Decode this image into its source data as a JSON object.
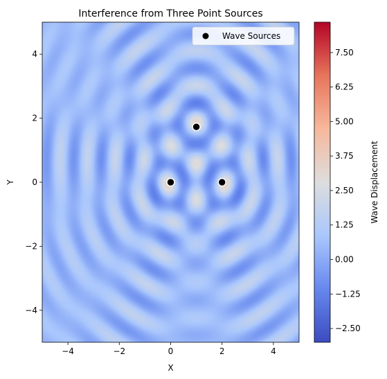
{
  "chart_data": {
    "type": "heatmap",
    "title": "Interference from Three Point Sources",
    "xlabel": "X",
    "ylabel": "Y",
    "xlim": [
      -5,
      5
    ],
    "ylim": [
      -5,
      5
    ],
    "x_ticks": [
      {
        "value": -4,
        "label": "−4"
      },
      {
        "value": -2,
        "label": "−2"
      },
      {
        "value": 0,
        "label": "0"
      },
      {
        "value": 2,
        "label": "2"
      },
      {
        "value": 4,
        "label": "4"
      }
    ],
    "y_ticks": [
      {
        "value": -4,
        "label": "−4"
      },
      {
        "value": -2,
        "label": "−2"
      },
      {
        "value": 0,
        "label": "0"
      },
      {
        "value": 2,
        "label": "2"
      },
      {
        "value": 4,
        "label": "4"
      }
    ],
    "colormap": "coolwarm",
    "colormap_stops": [
      "#3b4cc0",
      "#6688ee",
      "#aac7fd",
      "#dddddd",
      "#f7b89c",
      "#e7755b",
      "#b40426"
    ],
    "colorbar": {
      "label": "Wave Displacement",
      "range": [
        -3.0,
        8.6
      ],
      "ticks": [
        {
          "value": -2.5,
          "label": "−2.50"
        },
        {
          "value": -1.25,
          "label": "−1.25"
        },
        {
          "value": 0.0,
          "label": "0.00"
        },
        {
          "value": 1.25,
          "label": "1.25"
        },
        {
          "value": 2.5,
          "label": "2.50"
        },
        {
          "value": 3.75,
          "label": "3.75"
        },
        {
          "value": 5.0,
          "label": "5.00"
        },
        {
          "value": 6.25,
          "label": "6.25"
        },
        {
          "value": 7.5,
          "label": "7.50"
        }
      ]
    },
    "field": {
      "wavenumber": 6.0
    },
    "sources": {
      "name": "Wave Sources",
      "color": "#000000",
      "points": [
        {
          "x": 0,
          "y": 0
        },
        {
          "x": 2,
          "y": 0
        },
        {
          "x": 1,
          "y": 1.73
        }
      ]
    },
    "legend_position": "top-right",
    "grid": false
  }
}
